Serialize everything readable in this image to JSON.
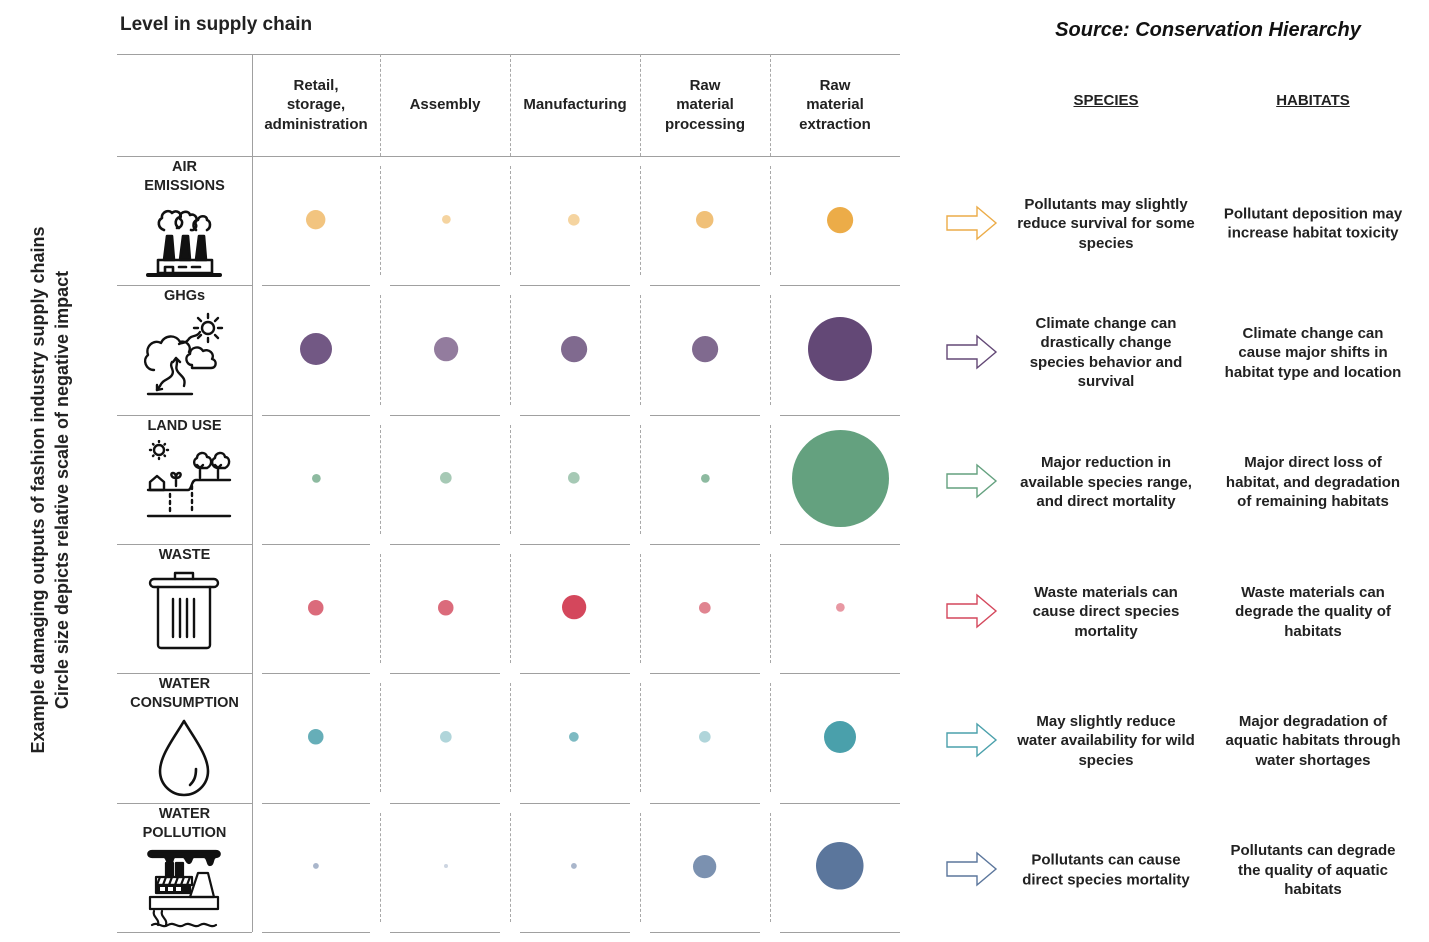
{
  "header": {
    "title": "Level in supply chain",
    "source": "Source: Conservation Hierarchy"
  },
  "vertical_label": {
    "line1": "Example damaging outputs of fashion industry supply chains",
    "line2": "Circle size depicts relative scale of negative impact"
  },
  "outcome_headers": {
    "species": "SPECIES",
    "habitats": "HABITATS"
  },
  "chart_data": {
    "type": "bubble-matrix",
    "title": "Level in supply chain",
    "xlabel": "Level in supply chain",
    "ylabel": "Example damaging outputs of fashion industry supply chains — Circle size depicts relative scale of negative impact",
    "categories": [
      "Retail, storage, administration",
      "Assembly",
      "Manufacturing",
      "Raw material processing",
      "Raw material extraction"
    ],
    "category_lines": [
      [
        "Retail,",
        "storage,",
        "administration"
      ],
      [
        "Assembly"
      ],
      [
        "Manufacturing"
      ],
      [
        "Raw",
        "material",
        "processing"
      ],
      [
        "Raw",
        "material",
        "extraction"
      ]
    ],
    "size_units": "relative impact (largest = 100)",
    "series": [
      {
        "name": "AIR EMISSIONS",
        "label_lines": [
          "AIR",
          "EMISSIONS"
        ],
        "icon": "factory-smoke-icon",
        "color": "#ecac48",
        "values": [
          20,
          9,
          12,
          18,
          27
        ],
        "shades": [
          "#f2c47f",
          "#f5d4a0",
          "#f5d4a0",
          "#f0c078",
          "#ecac48"
        ],
        "species_impact": "Pollutants may slightly reduce survival for some species",
        "habitat_impact": "Pollutant deposition may increase habitat toxicity"
      },
      {
        "name": "GHGs",
        "label_lines": [
          "GHGs"
        ],
        "icon": "climate-cloud-sun-icon",
        "color": "#634876",
        "values": [
          33,
          25,
          27,
          27,
          66
        ],
        "shades": [
          "#725884",
          "#937c9e",
          "#806a8f",
          "#806a8f",
          "#634876"
        ],
        "species_impact": "Climate change can drastically change species behavior and survival",
        "habitat_impact": "Climate change can cause major shifts in habitat type and location"
      },
      {
        "name": "LAND USE",
        "label_lines": [
          "LAND USE"
        ],
        "icon": "land-use-icon",
        "color": "#64a17f",
        "values": [
          9,
          12,
          12,
          9,
          100
        ],
        "shades": [
          "#8dbaa0",
          "#a6c9b5",
          "#a6c9b5",
          "#8dbaa0",
          "#64a17f"
        ],
        "species_impact": "Major reduction in available species range, and direct mortality",
        "habitat_impact": "Major direct loss of habitat, and degradation of remaining habitats"
      },
      {
        "name": "WASTE",
        "label_lines": [
          "WASTE"
        ],
        "icon": "trash-can-icon",
        "color": "#d4475c",
        "values": [
          16,
          16,
          25,
          12,
          9
        ],
        "shades": [
          "#db6b7b",
          "#db6b7b",
          "#d4475c",
          "#e08490",
          "#e898a3"
        ],
        "species_impact": "Waste materials can cause direct species mortality",
        "habitat_impact": "Waste materials can degrade the quality of habitats"
      },
      {
        "name": "WATER CONSUMPTION",
        "label_lines": [
          "WATER",
          "CONSUMPTION"
        ],
        "icon": "water-drop-icon",
        "color": "#4aa0ab",
        "values": [
          16,
          12,
          10,
          12,
          33
        ],
        "shades": [
          "#66aeb8",
          "#b0d5da",
          "#7dbac2",
          "#b0d5da",
          "#4aa0ab"
        ],
        "species_impact": "May slightly reduce water availability for wild species",
        "habitat_impact": "Major degradation of aquatic habitats through water shortages"
      },
      {
        "name": "WATER POLLUTION",
        "label_lines": [
          "WATER",
          "POLLUTION"
        ],
        "icon": "polluting-ship-icon",
        "color": "#5b769c",
        "values": [
          6,
          4,
          6,
          24,
          49
        ],
        "shades": [
          "#a9b6cb",
          "#cdd5e1",
          "#a9b6cb",
          "#7b91b0",
          "#5b769c"
        ],
        "species_impact": "Pollutants can cause direct species mortality",
        "habitat_impact": "Pollutants can degrade the quality of aquatic habitats"
      }
    ]
  }
}
